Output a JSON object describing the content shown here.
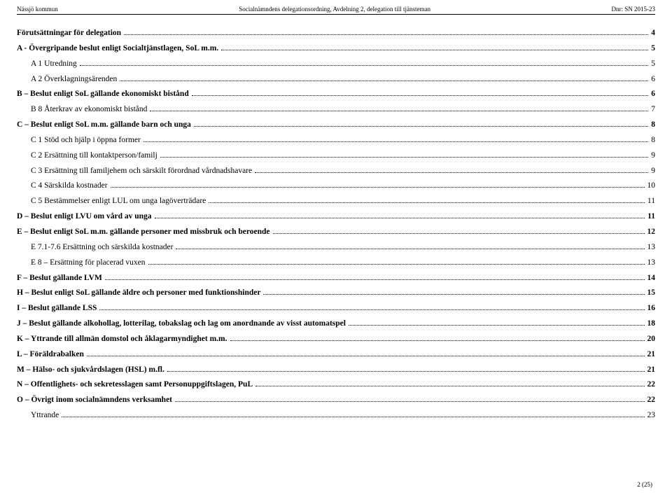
{
  "header": {
    "left": "Nässjö kommun",
    "center": "Socialnämndens delegationsordning, Avdelning 2, delegation till tjänsteman",
    "right": "Dnr: SN 2015-23"
  },
  "toc": [
    {
      "label": "Förutsättningar för delegation",
      "page": "4",
      "bold": true,
      "indent": 0
    },
    {
      "label": "A - Övergripande beslut enligt Socialtjänstlagen, SoL m.m.",
      "page": "5",
      "bold": true,
      "indent": 0
    },
    {
      "label": "A 1 Utredning",
      "page": "5",
      "bold": false,
      "indent": 1
    },
    {
      "label": "A 2 Överklagningsärenden",
      "page": "6",
      "bold": false,
      "indent": 1
    },
    {
      "label": "B – Beslut enligt SoL gällande ekonomiskt bistånd",
      "page": "6",
      "bold": true,
      "indent": 0
    },
    {
      "label": "B 8 Återkrav av ekonomiskt bistånd",
      "page": "7",
      "bold": false,
      "indent": 1
    },
    {
      "label": "C – Beslut enligt SoL m.m. gällande barn och unga",
      "page": "8",
      "bold": true,
      "indent": 0
    },
    {
      "label": "C 1 Stöd och hjälp i öppna former",
      "page": "8",
      "bold": false,
      "indent": 1
    },
    {
      "label": "C 2 Ersättning till kontaktperson/familj",
      "page": "9",
      "bold": false,
      "indent": 1
    },
    {
      "label": "C 3 Ersättning till familjehem och särskilt förordnad vårdnadshavare",
      "page": "9",
      "bold": false,
      "indent": 1
    },
    {
      "label": "C 4 Särskilda kostnader",
      "page": "10",
      "bold": false,
      "indent": 1
    },
    {
      "label": "C 5 Bestämmelser enligt LUL om unga lagöverträdare",
      "page": "11",
      "bold": false,
      "indent": 1
    },
    {
      "label": "D – Beslut enligt LVU om vård av unga",
      "page": "11",
      "bold": true,
      "indent": 0
    },
    {
      "label": "E – Beslut enligt SoL m.m. gällande personer med missbruk och beroende",
      "page": "12",
      "bold": true,
      "indent": 0
    },
    {
      "label": "E 7.1-7.6  Ersättning och särskilda kostnader",
      "page": "13",
      "bold": false,
      "indent": 1
    },
    {
      "label": "E 8 – Ersättning för placerad vuxen",
      "page": "13",
      "bold": false,
      "indent": 1
    },
    {
      "label": "F – Beslut gällande LVM",
      "page": "14",
      "bold": true,
      "indent": 0
    },
    {
      "label": "H – Beslut enligt SoL gällande äldre och personer med funktionshinder",
      "page": "15",
      "bold": true,
      "indent": 0
    },
    {
      "label": "I – Beslut gällande LSS",
      "page": "16",
      "bold": true,
      "indent": 0
    },
    {
      "label": "J – Beslut gällande alkohollag, lotterilag, tobakslag och lag om anordnande av visst automatspel",
      "page": "18",
      "bold": true,
      "indent": 0
    },
    {
      "label": "K – Yttrande till allmän domstol och åklagarmyndighet m.m.",
      "page": "20",
      "bold": true,
      "indent": 0
    },
    {
      "label": "L – Föräldrabalken",
      "page": "21",
      "bold": true,
      "indent": 0
    },
    {
      "label": "M – Hälso- och sjukvårdslagen (HSL) m.fl.",
      "page": "21",
      "bold": true,
      "indent": 0
    },
    {
      "label": "N – Offentlighets- och sekretesslagen samt Personuppgiftslagen, PuL",
      "page": "22",
      "bold": true,
      "indent": 0
    },
    {
      "label": "O – Övrigt inom socialnämndens verksamhet",
      "page": "22",
      "bold": true,
      "indent": 0
    },
    {
      "label": "Yttrande",
      "page": "23",
      "bold": false,
      "indent": 1
    }
  ],
  "footer": "2 (25)"
}
